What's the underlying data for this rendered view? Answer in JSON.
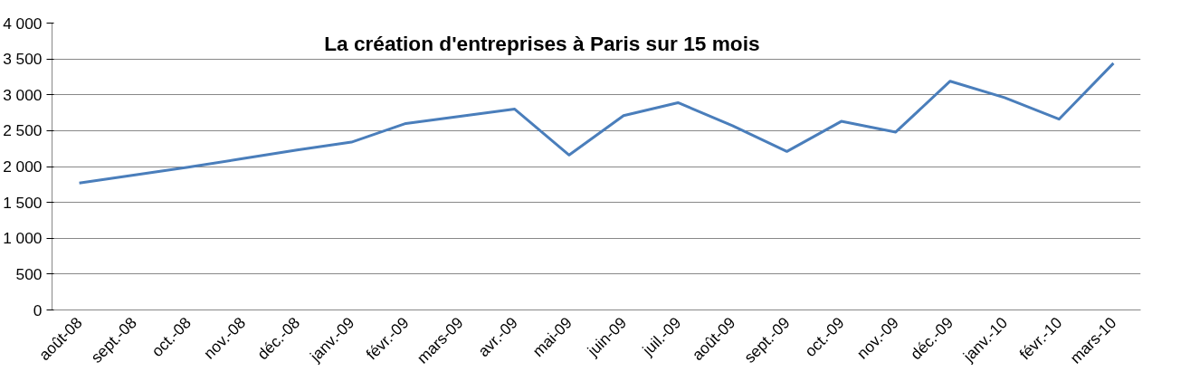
{
  "chart_data": {
    "type": "line",
    "title": "La création d'entreprises à Paris sur 15 mois",
    "categories": [
      "août-08",
      "sept.-08",
      "oct.-08",
      "nov.-08",
      "déc.-08",
      "janv.-09",
      "févr.-09",
      "mars-09",
      "avr.-09",
      "mai-09",
      "juin-09",
      "juil.-09",
      "août-09",
      "sept.-09",
      "oct.-09",
      "nov.-09",
      "déc.-09",
      "janv.-10",
      "févr.-10",
      "mars-10"
    ],
    "series": [
      {
        "color": "#4a7ebb",
        "values": [
          1770,
          1880,
          1990,
          2110,
          2230,
          2340,
          2600,
          2700,
          2800,
          2160,
          2710,
          2890,
          2570,
          2210,
          2630,
          2480,
          3190,
          2960,
          2660,
          3440
        ]
      }
    ],
    "ylim": [
      0,
      4000
    ],
    "yticks": [
      {
        "value": 0,
        "label": "0"
      },
      {
        "value": 500,
        "label": "500"
      },
      {
        "value": 1000,
        "label": "1 000"
      },
      {
        "value": 1500,
        "label": "1 500"
      },
      {
        "value": 2000,
        "label": "2 000"
      },
      {
        "value": 2500,
        "label": "2 500"
      },
      {
        "value": 3000,
        "label": "3 000"
      },
      {
        "value": 3500,
        "label": "3 500"
      },
      {
        "value": 4000,
        "label": "4 000"
      }
    ],
    "grid": "y",
    "marker": "none",
    "line_style": "solid"
  }
}
